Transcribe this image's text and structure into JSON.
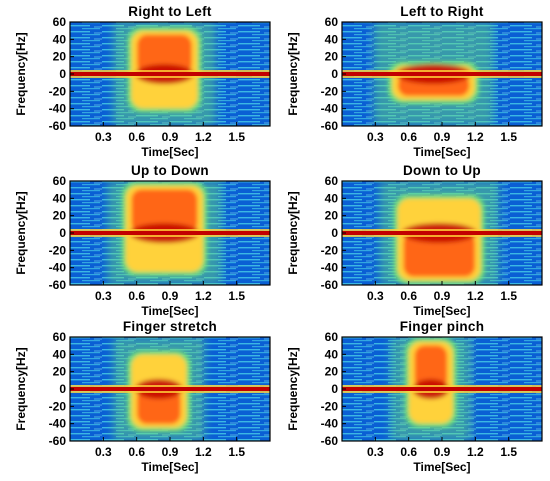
{
  "figure": {
    "colors": {
      "background": "#0a5fd4",
      "noise": "#43c7e6",
      "mid": "#6fe07a",
      "high": "#ffd23a",
      "peak": "#ff5a14",
      "core": "#c20000",
      "frame": "#000000"
    }
  },
  "chart_data": [
    {
      "type": "heatmap",
      "title": "Right to Left",
      "xlabel": "Time[Sec]",
      "ylabel": "Frequency[Hz]",
      "xticks": [
        "0.3",
        "0.6",
        "0.9",
        "1.2",
        "1.5"
      ],
      "xlim": [
        0,
        1.8
      ],
      "yticks": [
        "60",
        "40",
        "20",
        "0",
        "-20",
        "-40",
        "-60"
      ],
      "ylim": [
        -60,
        60
      ],
      "colorscale": "jet",
      "signature": {
        "t_start": 0.55,
        "t_end": 1.15,
        "f_upper": 50,
        "f_lower": -40,
        "dominant": "positive"
      }
    },
    {
      "type": "heatmap",
      "title": "Left to Right",
      "xlabel": "Time[Sec]",
      "ylabel": "Frequency[Hz]",
      "xticks": [
        "0.3",
        "0.6",
        "0.9",
        "1.2",
        "1.5"
      ],
      "xlim": [
        0,
        1.8
      ],
      "yticks": [
        "60",
        "40",
        "20",
        "0",
        "-20",
        "-40",
        "-60"
      ],
      "ylim": [
        -60,
        60
      ],
      "colorscale": "jet",
      "signature": {
        "t_start": 0.45,
        "t_end": 1.2,
        "f_upper": 10,
        "f_lower": -30,
        "dominant": "negative"
      }
    },
    {
      "type": "heatmap",
      "title": "Up to Down",
      "xlabel": "Time[Sec]",
      "ylabel": "Frequency[Hz]",
      "xticks": [
        "0.3",
        "0.6",
        "0.9",
        "1.2",
        "1.5"
      ],
      "xlim": [
        0,
        1.8
      ],
      "yticks": [
        "60",
        "40",
        "20",
        "0",
        "-20",
        "-40",
        "-60"
      ],
      "ylim": [
        -60,
        60
      ],
      "colorscale": "jet",
      "signature": {
        "t_start": 0.5,
        "t_end": 1.2,
        "f_upper": 55,
        "f_lower": -45,
        "dominant": "positive"
      }
    },
    {
      "type": "heatmap",
      "title": "Down to Up",
      "xlabel": "Time[Sec]",
      "ylabel": "Frequency[Hz]",
      "xticks": [
        "0.3",
        "0.6",
        "0.9",
        "1.2",
        "1.5"
      ],
      "xlim": [
        0,
        1.8
      ],
      "yticks": [
        "60",
        "40",
        "20",
        "0",
        "-20",
        "-40",
        "-60"
      ],
      "ylim": [
        -60,
        60
      ],
      "colorscale": "jet",
      "signature": {
        "t_start": 0.5,
        "t_end": 1.25,
        "f_upper": 40,
        "f_lower": -55,
        "dominant": "negative"
      }
    },
    {
      "type": "heatmap",
      "title": "Finger stretch",
      "xlabel": "Time[Sec]",
      "ylabel": "Frequency[Hz]",
      "xticks": [
        "0.3",
        "0.6",
        "0.9",
        "1.2",
        "1.5"
      ],
      "xlim": [
        0,
        1.8
      ],
      "yticks": [
        "60",
        "40",
        "20",
        "0",
        "-20",
        "-40",
        "-60"
      ],
      "ylim": [
        -60,
        60
      ],
      "colorscale": "jet",
      "signature": {
        "t_start": 0.55,
        "t_end": 1.05,
        "f_upper": 40,
        "f_lower": -45,
        "dominant": "negative"
      }
    },
    {
      "type": "heatmap",
      "title": "Finger pinch",
      "xlabel": "Time[Sec]",
      "ylabel": "Frequency[Hz]",
      "xticks": [
        "0.3",
        "0.6",
        "0.9",
        "1.2",
        "1.5"
      ],
      "xlim": [
        0,
        1.8
      ],
      "yticks": [
        "60",
        "40",
        "20",
        "0",
        "-20",
        "-40",
        "-60"
      ],
      "ylim": [
        -60,
        60
      ],
      "colorscale": "jet",
      "signature": {
        "t_start": 0.6,
        "t_end": 1.0,
        "f_upper": 55,
        "f_lower": -40,
        "dominant": "positive"
      }
    }
  ]
}
